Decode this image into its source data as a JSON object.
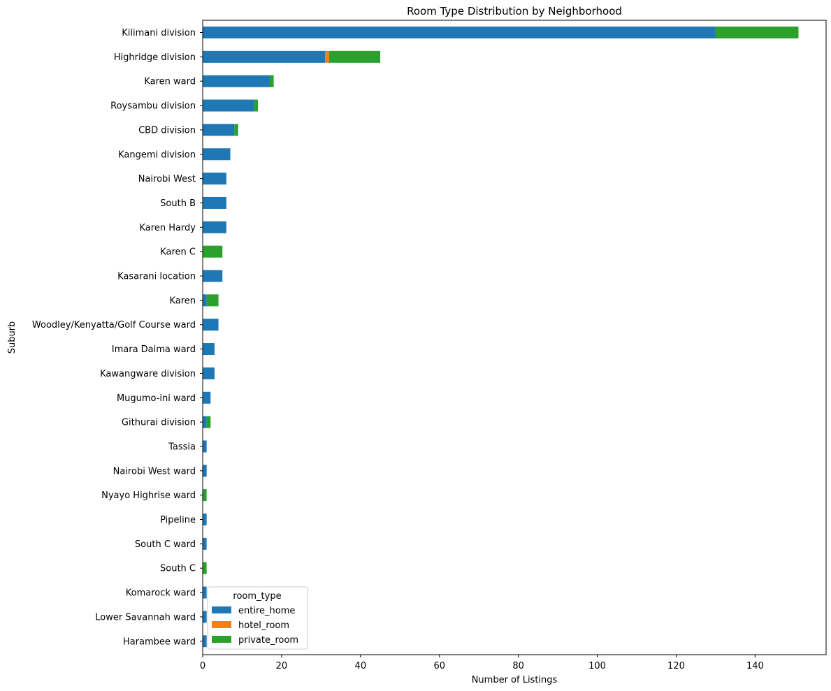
{
  "chart_data": {
    "type": "bar",
    "orientation": "horizontal",
    "stacked": true,
    "title": "Room Type Distribution by Neighborhood",
    "xlabel": "Number of Listings",
    "ylabel": "Suburb",
    "xlim": [
      0,
      158
    ],
    "xticks": [
      0,
      20,
      40,
      60,
      80,
      100,
      120,
      140
    ],
    "grid": false,
    "legend_title": "room_type",
    "legend_position": "lower-left",
    "categories": [
      "Kilimani division",
      "Highridge division",
      "Karen ward",
      "Roysambu division",
      "CBD division",
      "Kangemi division",
      "Nairobi West",
      "South B",
      "Karen Hardy",
      "Karen C",
      "Kasarani location",
      "Karen",
      "Woodley/Kenyatta/Golf Course ward",
      "Imara Daima ward",
      "Kawangware division",
      "Mugumo-ini ward",
      "Githurai division",
      "Tassia",
      "Nairobi West ward",
      "Nyayo Highrise ward",
      "Pipeline",
      "South C ward",
      "South C",
      "Komarock ward",
      "Lower Savannah ward",
      "Harambee ward"
    ],
    "series": [
      {
        "name": "entire_home",
        "color": "#1f77b4",
        "values": [
          130,
          31,
          17,
          13,
          8,
          7,
          6,
          6,
          6,
          0,
          5,
          1,
          4,
          3,
          3,
          2,
          1,
          1,
          1,
          0,
          1,
          1,
          0,
          1,
          1,
          1
        ]
      },
      {
        "name": "hotel_room",
        "color": "#ff7f0e",
        "values": [
          0,
          1,
          0,
          0,
          0,
          0,
          0,
          0,
          0,
          0,
          0,
          0,
          0,
          0,
          0,
          0,
          0,
          0,
          0,
          0,
          0,
          0,
          0,
          0,
          0,
          0
        ]
      },
      {
        "name": "private_room",
        "color": "#2ca02c",
        "values": [
          21,
          13,
          1,
          1,
          1,
          0,
          0,
          0,
          0,
          5,
          0,
          3,
          0,
          0,
          0,
          0,
          1,
          0,
          0,
          1,
          0,
          0,
          1,
          0,
          0,
          0
        ]
      }
    ]
  }
}
